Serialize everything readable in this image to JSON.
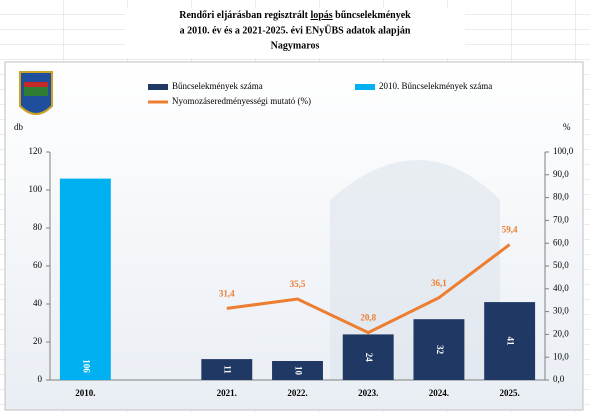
{
  "chart_data": {
    "type": "bar",
    "title": [
      "Rendőri eljárásban regisztrált ",
      "lopás",
      " bűncselekmények"
    ],
    "subtitle": [
      "a 2010. év és a 2021-2025. évi ENyÜBS adatok alapján",
      "Nagymaros"
    ],
    "y_label": "db",
    "y2_label": "%",
    "categories": [
      "2010.",
      null,
      "2021.",
      "2022.",
      "2023.",
      "2024.",
      "2025."
    ],
    "series": [
      {
        "name": "Bűncselekmények száma",
        "type": "bar",
        "color": "#1f3864",
        "values": [
          null,
          null,
          11,
          10,
          24,
          32,
          41
        ]
      },
      {
        "name": "2010. Bűncselekmények száma",
        "type": "bar",
        "color": "#00b0f0",
        "values": [
          106,
          null,
          null,
          null,
          null,
          null,
          null
        ]
      },
      {
        "name": "Nyomozáseredményességi mutató (%)",
        "type": "line",
        "axis": "y2",
        "color": "#ed7d31",
        "values": [
          null,
          null,
          31.4,
          35.5,
          20.8,
          36.1,
          59.4
        ],
        "value_labels": [
          null,
          null,
          "31,4",
          "35,5",
          "20,8",
          "36,1",
          "59,4"
        ]
      }
    ],
    "ylim": [
      0,
      120
    ],
    "yticks": [
      0,
      20,
      40,
      60,
      80,
      100,
      120
    ],
    "y2lim": [
      0,
      100
    ],
    "y2ticks": [
      {
        "value": 0,
        "label": "0,0"
      },
      {
        "value": 10,
        "label": "10,0"
      },
      {
        "value": 20,
        "label": "20,0"
      },
      {
        "value": 30,
        "label": "30,0"
      },
      {
        "value": 40,
        "label": "40,0"
      },
      {
        "value": 50,
        "label": "50,0"
      },
      {
        "value": 60,
        "label": "60,0"
      },
      {
        "value": 70,
        "label": "70,0"
      },
      {
        "value": 80,
        "label": "80,0"
      },
      {
        "value": 90,
        "label": "90,0"
      },
      {
        "value": 100,
        "label": "100,0"
      }
    ]
  }
}
